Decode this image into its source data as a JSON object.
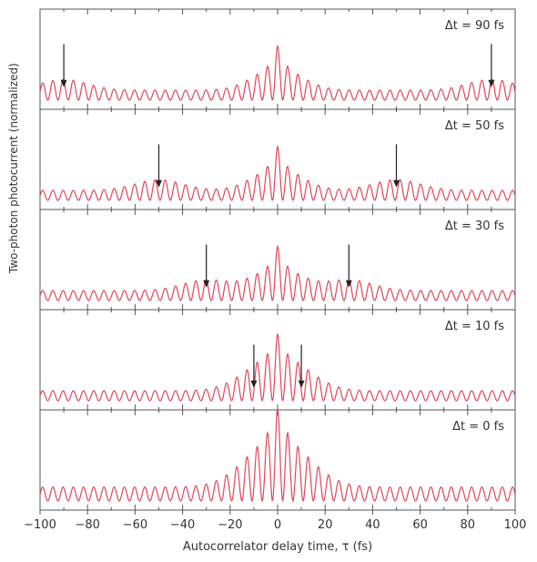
{
  "chart_data": {
    "type": "line",
    "xlabel": "Autocorrelator delay time, τ (fs)",
    "ylabel": "Two-photon photocurrent (normalized)",
    "xlim": [
      -100,
      100
    ],
    "x_ticks": [
      -100,
      -80,
      -60,
      -40,
      -20,
      0,
      20,
      40,
      60,
      80,
      100
    ],
    "panels": [
      {
        "label": "Δt = 90 fs",
        "delay": 90,
        "arrows": [
          -90,
          90
        ]
      },
      {
        "label": "Δt = 50 fs",
        "delay": 50,
        "arrows": [
          -50,
          50
        ]
      },
      {
        "label": "Δt = 30 fs",
        "delay": 30,
        "arrows": [
          -30,
          30
        ]
      },
      {
        "label": "Δt = 10 fs",
        "delay": 10,
        "arrows": [
          -10,
          10
        ]
      },
      {
        "label": "Δt = 0 fs",
        "delay": 0,
        "arrows": []
      }
    ],
    "series_color": "#e0465a",
    "grid": false
  }
}
